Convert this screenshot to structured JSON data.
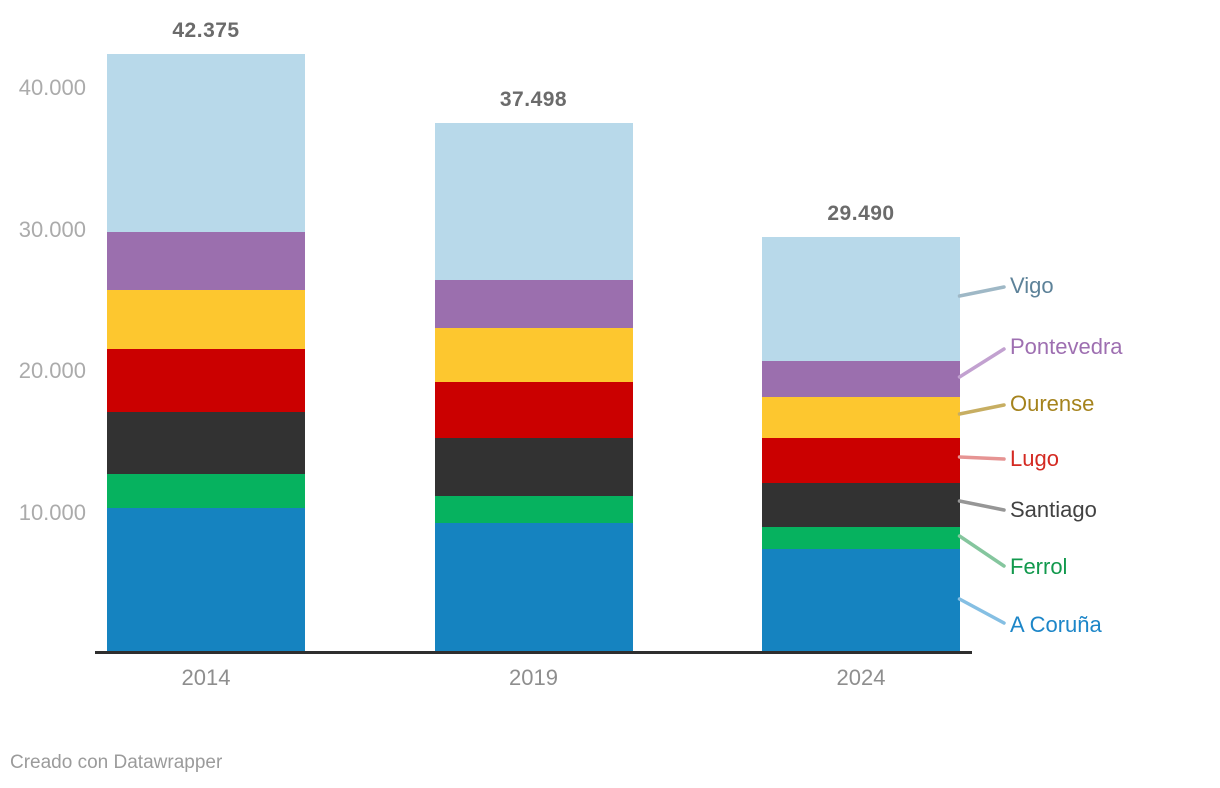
{
  "chart_data": {
    "type": "bar",
    "stacked": true,
    "categories": [
      "2014",
      "2019",
      "2024"
    ],
    "series": [
      {
        "name": "A Coruña",
        "color": "#1583c0",
        "label_color": "#1d86c8",
        "line_color": "#85bfe3",
        "values": [
          10300,
          9250,
          7450
        ]
      },
      {
        "name": "Ferrol",
        "color": "#06b25f",
        "label_color": "#12994d",
        "line_color": "#85c69e",
        "values": [
          2400,
          1900,
          1550
        ]
      },
      {
        "name": "Santiago",
        "color": "#323232",
        "label_color": "#424242",
        "line_color": "#969696",
        "values": [
          4400,
          4150,
          3100
        ]
      },
      {
        "name": "Lugo",
        "color": "#cb0000",
        "label_color": "#d42a22",
        "line_color": "#e69493",
        "values": [
          4450,
          3950,
          3180
        ]
      },
      {
        "name": "Ourense",
        "color": "#fdc72f",
        "label_color": "#a5831d",
        "line_color": "#c7ae62",
        "values": [
          4200,
          3800,
          2900
        ]
      },
      {
        "name": "Pontevedra",
        "color": "#9b6fae",
        "label_color": "#9e6fb1",
        "line_color": "#c2a1d0",
        "values": [
          4100,
          3350,
          2560
        ]
      },
      {
        "name": "Vigo",
        "color": "#b8d9ea",
        "label_color": "#5d8299",
        "line_color": "#9fb8c6",
        "values": [
          12525,
          11098,
          8750
        ]
      }
    ],
    "totals": [
      42375,
      37498,
      29490
    ],
    "total_labels": [
      "42.375",
      "37.498",
      "29.490"
    ],
    "y_ticks": [
      {
        "value": 10000,
        "label": "10.000"
      },
      {
        "value": 20000,
        "label": "20.000"
      },
      {
        "value": 30000,
        "label": "30.000"
      },
      {
        "value": 40000,
        "label": "40.000"
      }
    ],
    "ylim": [
      0,
      46200
    ],
    "grid": false,
    "legend_position": "right"
  },
  "footer": {
    "credit": "Creado con Datawrapper"
  }
}
